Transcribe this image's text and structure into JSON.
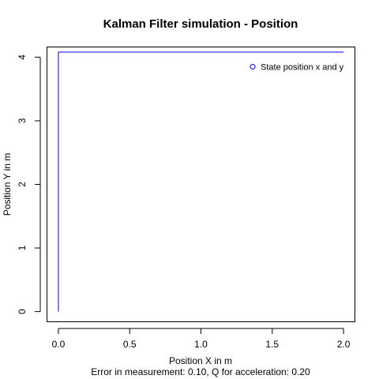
{
  "chart_data": {
    "type": "line",
    "title": "Kalman Filter simulation - Position",
    "xlabel": "Position X in m",
    "ylabel": "Position Y in m",
    "subtitle": "Error in measurement: 0.10, Q for acceleration: 0.20",
    "xlim": [
      -0.08,
      2.08
    ],
    "ylim": [
      -0.16,
      4.16
    ],
    "x_ticks": [
      0.0,
      0.5,
      1.0,
      1.5,
      2.0
    ],
    "x_tick_labels": [
      "0.0",
      "0.5",
      "1.0",
      "1.5",
      "2.0"
    ],
    "y_ticks": [
      0,
      1,
      2,
      3,
      4
    ],
    "y_tick_labels": [
      "0",
      "1",
      "2",
      "3",
      "4"
    ],
    "grid": false,
    "legend_position": "top-right",
    "series": [
      {
        "name": "State position x and y",
        "color": "#0000ff",
        "marker": "open-circle",
        "x": [
          0.0,
          0.0,
          0.01,
          2.0
        ],
        "y": [
          0.0,
          4.08,
          4.08,
          4.08
        ]
      }
    ]
  }
}
